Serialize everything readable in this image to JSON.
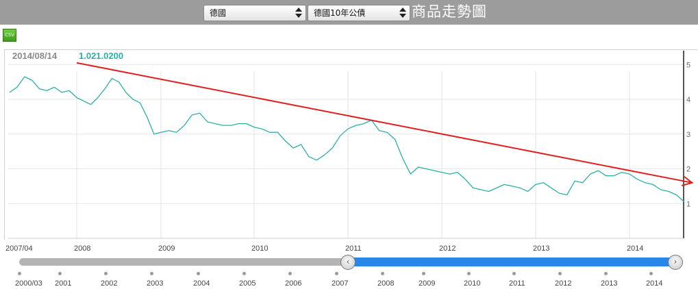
{
  "header": {
    "country_select": "德國",
    "product_select": "德國10年公債",
    "title": "商品走勢圖"
  },
  "csv_button": "CSV",
  "info": {
    "date": "2014/08/14",
    "value": "1.021.0200"
  },
  "colors": {
    "topbar": "#9c9c9c",
    "series": "#2bb0a8",
    "trendline": "#e02020",
    "navigator_selection": "#2a86e8"
  },
  "navigator": {
    "tick_labels": [
      "2000/03",
      "2001",
      "2002",
      "2003",
      "2004",
      "2005",
      "2006",
      "2007",
      "2008",
      "2009",
      "2010",
      "2011",
      "2012",
      "2013",
      "2014"
    ],
    "left_handle_icon": "chevron-left-icon",
    "right_handle_icon": "chevron-right-icon"
  },
  "chart_data": {
    "type": "line",
    "title": "",
    "xlabel": "",
    "ylabel": "",
    "x_tick_labels": [
      "2007/04",
      "2008",
      "2009",
      "2010",
      "2011",
      "2012",
      "2013",
      "2014"
    ],
    "y_tick_labels": [
      "1",
      "2",
      "3",
      "4",
      "5"
    ],
    "ylim": [
      0.0,
      5.4
    ],
    "grid": true,
    "series": [
      {
        "x": [
          "2007-04",
          "2007-05",
          "2007-06",
          "2007-07",
          "2007-08",
          "2007-09",
          "2007-10",
          "2007-11",
          "2007-12",
          "2008-01",
          "2008-02",
          "2008-03",
          "2008-04",
          "2008-05",
          "2008-06",
          "2008-07",
          "2008-08",
          "2008-09",
          "2008-10",
          "2008-11",
          "2008-12",
          "2009-01",
          "2009-02",
          "2009-03",
          "2009-04",
          "2009-05",
          "2009-06",
          "2009-07",
          "2009-08",
          "2009-09",
          "2009-10",
          "2009-11",
          "2009-12",
          "2010-01",
          "2010-02",
          "2010-03",
          "2010-04",
          "2010-05",
          "2010-06",
          "2010-07",
          "2010-08",
          "2010-09",
          "2010-10",
          "2010-11",
          "2010-12",
          "2011-01",
          "2011-02",
          "2011-03",
          "2011-04",
          "2011-05",
          "2011-06",
          "2011-07",
          "2011-08",
          "2011-09",
          "2011-10",
          "2011-11",
          "2011-12",
          "2012-01",
          "2012-02",
          "2012-03",
          "2012-04",
          "2012-05",
          "2012-06",
          "2012-07",
          "2012-08",
          "2012-09",
          "2012-10",
          "2012-11",
          "2012-12",
          "2013-01",
          "2013-02",
          "2013-03",
          "2013-04",
          "2013-05",
          "2013-06",
          "2013-07",
          "2013-08",
          "2013-09",
          "2013-10",
          "2013-11",
          "2013-12",
          "2014-01",
          "2014-02",
          "2014-03",
          "2014-04",
          "2014-05",
          "2014-06",
          "2014-07",
          "2014-08"
        ],
        "y": [
          4.2,
          4.35,
          4.65,
          4.55,
          4.3,
          4.25,
          4.35,
          4.2,
          4.25,
          4.05,
          3.95,
          3.85,
          4.05,
          4.3,
          4.6,
          4.5,
          4.2,
          4.0,
          3.9,
          3.5,
          3.0,
          3.05,
          3.1,
          3.05,
          3.25,
          3.55,
          3.6,
          3.35,
          3.3,
          3.25,
          3.25,
          3.3,
          3.3,
          3.2,
          3.15,
          3.05,
          3.05,
          2.8,
          2.6,
          2.7,
          2.35,
          2.25,
          2.4,
          2.6,
          2.95,
          3.15,
          3.25,
          3.3,
          3.4,
          3.1,
          3.05,
          2.85,
          2.3,
          1.85,
          2.05,
          2.0,
          1.95,
          1.9,
          1.85,
          1.9,
          1.7,
          1.45,
          1.4,
          1.35,
          1.45,
          1.55,
          1.5,
          1.45,
          1.35,
          1.55,
          1.6,
          1.45,
          1.3,
          1.25,
          1.65,
          1.6,
          1.85,
          1.95,
          1.8,
          1.8,
          1.9,
          1.85,
          1.7,
          1.6,
          1.55,
          1.4,
          1.35,
          1.25,
          1.05
        ]
      }
    ],
    "trendline": {
      "from": [
        "2008-01",
        5.05
      ],
      "to": [
        "2014-09",
        1.6
      ]
    },
    "legend": "none"
  }
}
